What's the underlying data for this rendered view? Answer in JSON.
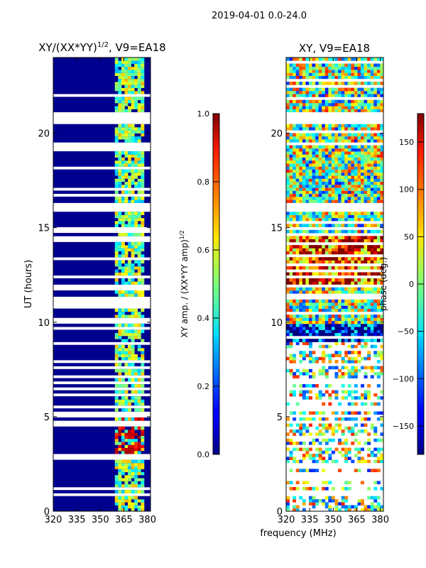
{
  "suptitle": "2019-04-01 0.0-24.0",
  "chart_data": [
    {
      "type": "heatmap",
      "title_main": "XY/(XX*YY)",
      "title_sup": "1/2",
      "title_tail": ", V9=EA18",
      "xlabel": "",
      "ylabel": "UT (hours)",
      "xlim": [
        320,
        382
      ],
      "ylim": [
        0,
        24
      ],
      "xticks": [
        320,
        335,
        350,
        365,
        380
      ],
      "yticks": [
        0,
        5,
        10,
        15,
        20
      ],
      "colorbar": {
        "label_main": "XY amp. / (XX*YY amp)",
        "label_sup": "1/2",
        "range": [
          0.0,
          1.0
        ],
        "ticks": [
          "0.0",
          "0.2",
          "0.4",
          "0.6",
          "0.8",
          "1.0"
        ],
        "ticklabels": [
          "0.0",
          "0.2",
          "0.4",
          "0.6",
          "0.8",
          "1.0"
        ]
      }
    },
    {
      "type": "heatmap",
      "title": "XY, V9=EA18",
      "xlabel": "frequency (MHz)",
      "ylabel": "",
      "xlim": [
        320,
        382
      ],
      "ylim": [
        0,
        24
      ],
      "xticks": [
        320,
        335,
        350,
        365,
        380
      ],
      "yticks": [
        0,
        5,
        10,
        15,
        20
      ],
      "colorbar": {
        "label": "phase (deg.)",
        "range": [
          -180,
          180
        ],
        "ticks": [
          -150,
          -100,
          -50,
          0,
          50,
          100,
          150
        ],
        "ticklabels": [
          "−150",
          "−100",
          "−50",
          "0",
          "50",
          "100",
          "150"
        ]
      }
    }
  ]
}
